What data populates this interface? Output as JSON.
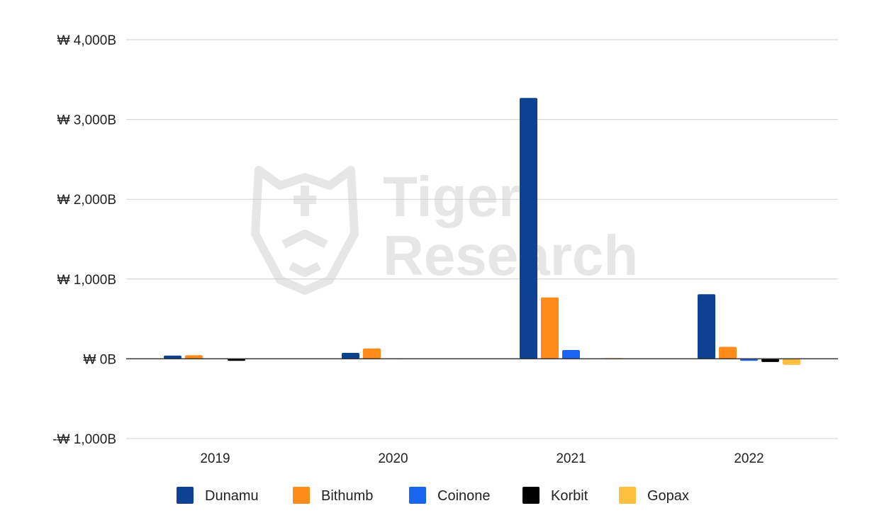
{
  "watermark": {
    "line1": "Tiger",
    "line2": "Research"
  },
  "chart_data": {
    "type": "bar",
    "categories": [
      "2019",
      "2020",
      "2021",
      "2022"
    ],
    "ylim": [
      -1000,
      4000
    ],
    "yticks": [
      -1000,
      0,
      1000,
      2000,
      3000,
      4000
    ],
    "ytick_labels": [
      "-₩ 1,000B",
      "₩ 0B",
      "₩ 1,000B",
      "₩ 2,000B",
      "₩ 3,000B",
      "₩ 4,000B"
    ],
    "grid": true,
    "legend_position": "bottom",
    "series": [
      {
        "name": "Dunamu",
        "color": "#0d4293",
        "values": [
          40,
          75,
          3270,
          810
        ]
      },
      {
        "name": "Bithumb",
        "color": "#ff8c1a",
        "values": [
          45,
          130,
          770,
          150
        ]
      },
      {
        "name": "Coinone",
        "color": "#1a66f2",
        "values": [
          0,
          5,
          110,
          -25
        ]
      },
      {
        "name": "Korbit",
        "color": "#000000",
        "values": [
          -25,
          0,
          0,
          -40
        ]
      },
      {
        "name": "Gopax",
        "color": "#ffc040",
        "values": [
          0,
          0,
          10,
          -75
        ]
      }
    ]
  }
}
